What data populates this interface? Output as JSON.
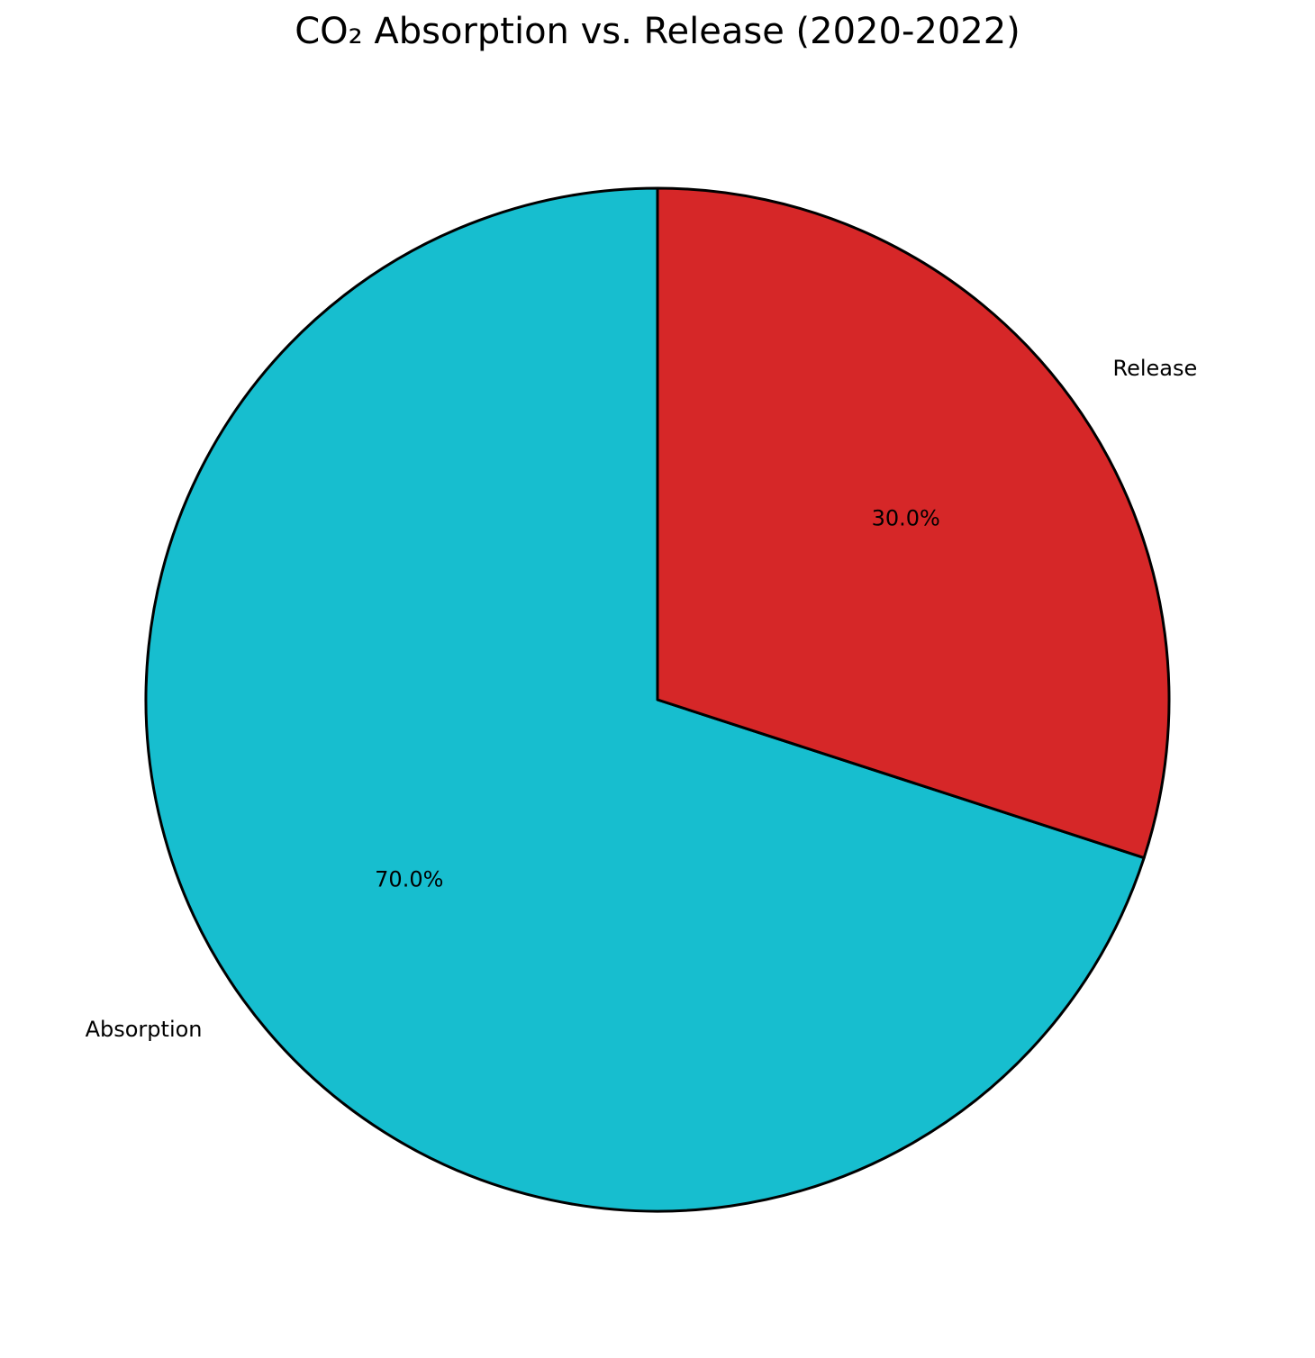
{
  "chart_data": {
    "type": "pie",
    "title": "CO₂ Absorption vs. Release (2020-2022)",
    "categories": [
      "Absorption",
      "Release"
    ],
    "values": [
      70.0,
      30.0
    ],
    "percent_labels": [
      "70.0%",
      "30.0%"
    ],
    "colors": [
      "#17becf",
      "#d62728"
    ],
    "edge_color": "#000000",
    "start_angle_deg": 90,
    "direction": "counterclockwise"
  }
}
